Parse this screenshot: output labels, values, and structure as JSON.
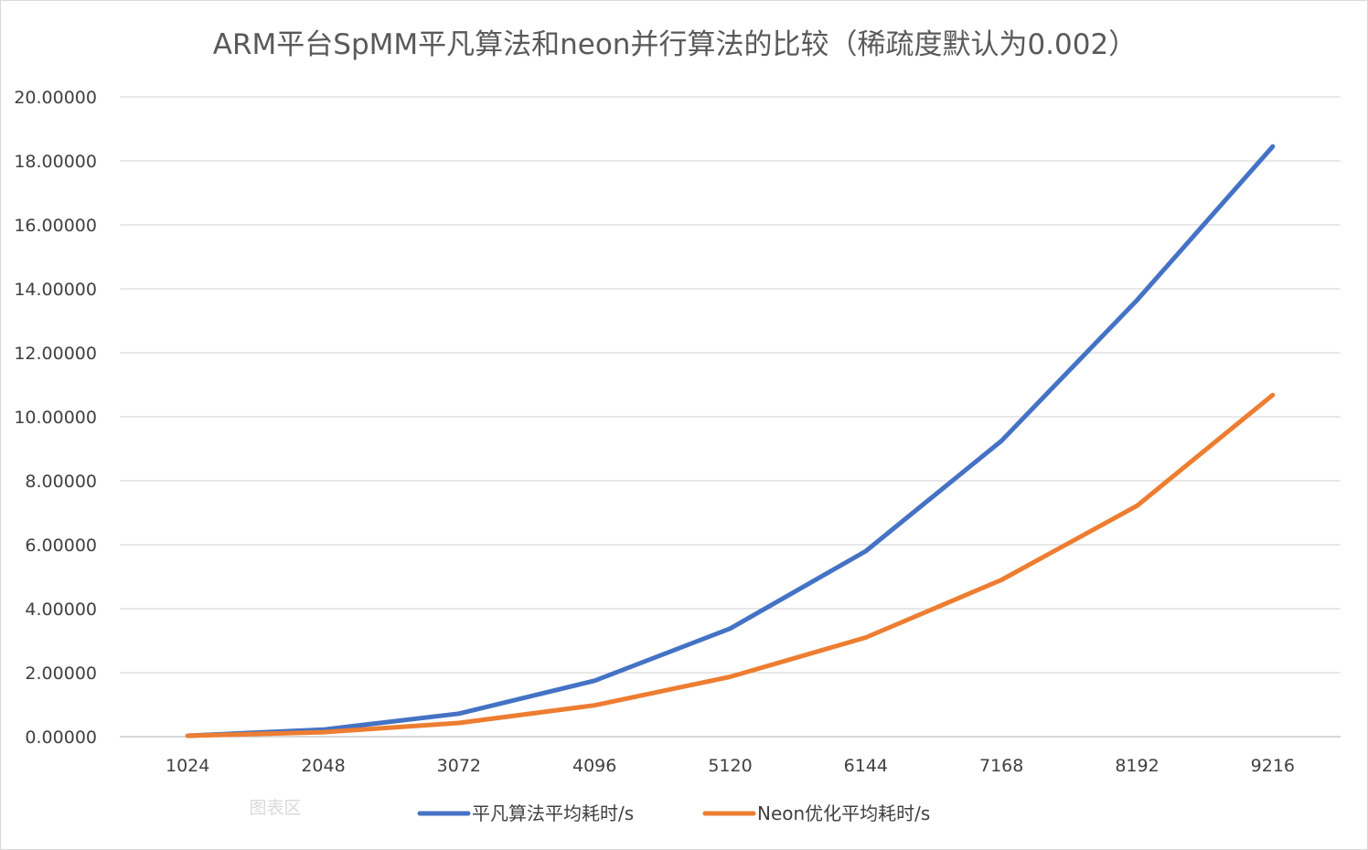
{
  "chart_data": {
    "type": "line",
    "title": "ARM平台SpMM平凡算法和neon并行算法的比较（稀疏度默认为0.002）",
    "categories": [
      "1024",
      "2048",
      "3072",
      "4096",
      "5120",
      "6144",
      "7168",
      "8192",
      "9216"
    ],
    "y_ticks": [
      "0.00000",
      "2.00000",
      "4.00000",
      "6.00000",
      "8.00000",
      "10.00000",
      "12.00000",
      "14.00000",
      "16.00000",
      "18.00000",
      "20.00000"
    ],
    "ylim": [
      0,
      20
    ],
    "grid": true,
    "legend_position": "bottom",
    "series": [
      {
        "name": "平凡算法平均耗时/s",
        "color": "#4472C4",
        "values": [
          0.03,
          0.22,
          0.72,
          1.75,
          3.38,
          5.8,
          9.25,
          13.65,
          18.45
        ]
      },
      {
        "name": "Neon优化平均耗时/s",
        "color": "#ED7D31",
        "values": [
          0.03,
          0.14,
          0.43,
          0.98,
          1.87,
          3.1,
          4.9,
          7.22,
          10.68
        ]
      }
    ]
  },
  "watermark": "图表区"
}
